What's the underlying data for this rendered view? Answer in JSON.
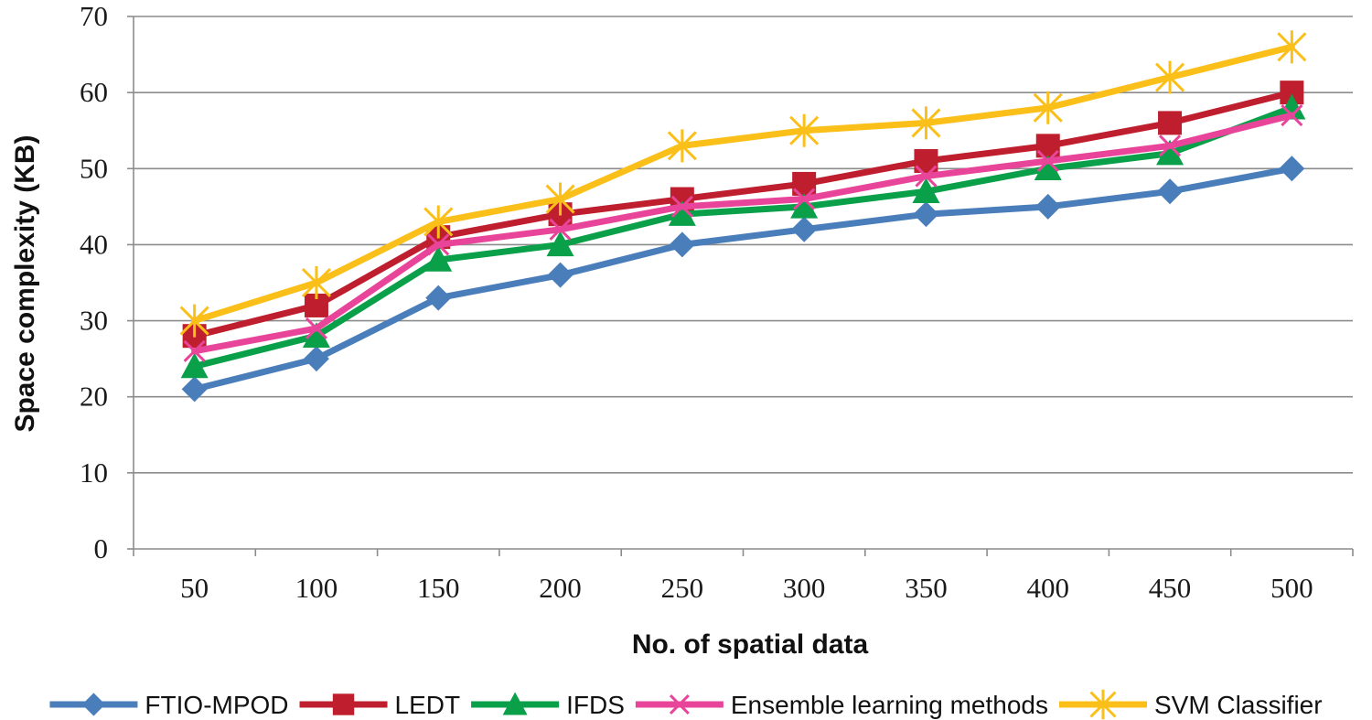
{
  "chart_data": {
    "type": "line",
    "title": "",
    "xlabel": "No. of spatial data",
    "ylabel": "Space complexity (KB)",
    "categories": [
      "50",
      "100",
      "150",
      "200",
      "250",
      "300",
      "350",
      "400",
      "450",
      "500"
    ],
    "ylim": [
      0,
      70
    ],
    "yticks": [
      "0",
      "10",
      "20",
      "30",
      "40",
      "50",
      "60",
      "70"
    ],
    "grid": "horizontal",
    "legend_position": "bottom",
    "series": [
      {
        "name": "FTIO-MPOD",
        "color": "#4a7ebb",
        "marker": "diamond",
        "values": [
          21,
          25,
          33,
          36,
          40,
          42,
          44,
          45,
          47,
          50
        ]
      },
      {
        "name": "LEDT",
        "color": "#be1e2d",
        "marker": "square",
        "values": [
          28,
          32,
          41,
          44,
          46,
          48,
          51,
          53,
          56,
          60
        ]
      },
      {
        "name": "IFDS",
        "color": "#0a9f49",
        "marker": "triangle",
        "values": [
          24,
          28,
          38,
          40,
          44,
          45,
          47,
          50,
          52,
          58
        ]
      },
      {
        "name": "Ensemble learning methods",
        "color": "#e8459a",
        "marker": "x",
        "values": [
          26,
          29,
          40,
          42,
          45,
          46,
          49,
          51,
          53,
          57
        ]
      },
      {
        "name": "SVM Classifier",
        "color": "#fbbf1a",
        "marker": "star",
        "values": [
          30,
          35,
          43,
          46,
          53,
          55,
          56,
          58,
          62,
          66
        ]
      }
    ]
  }
}
